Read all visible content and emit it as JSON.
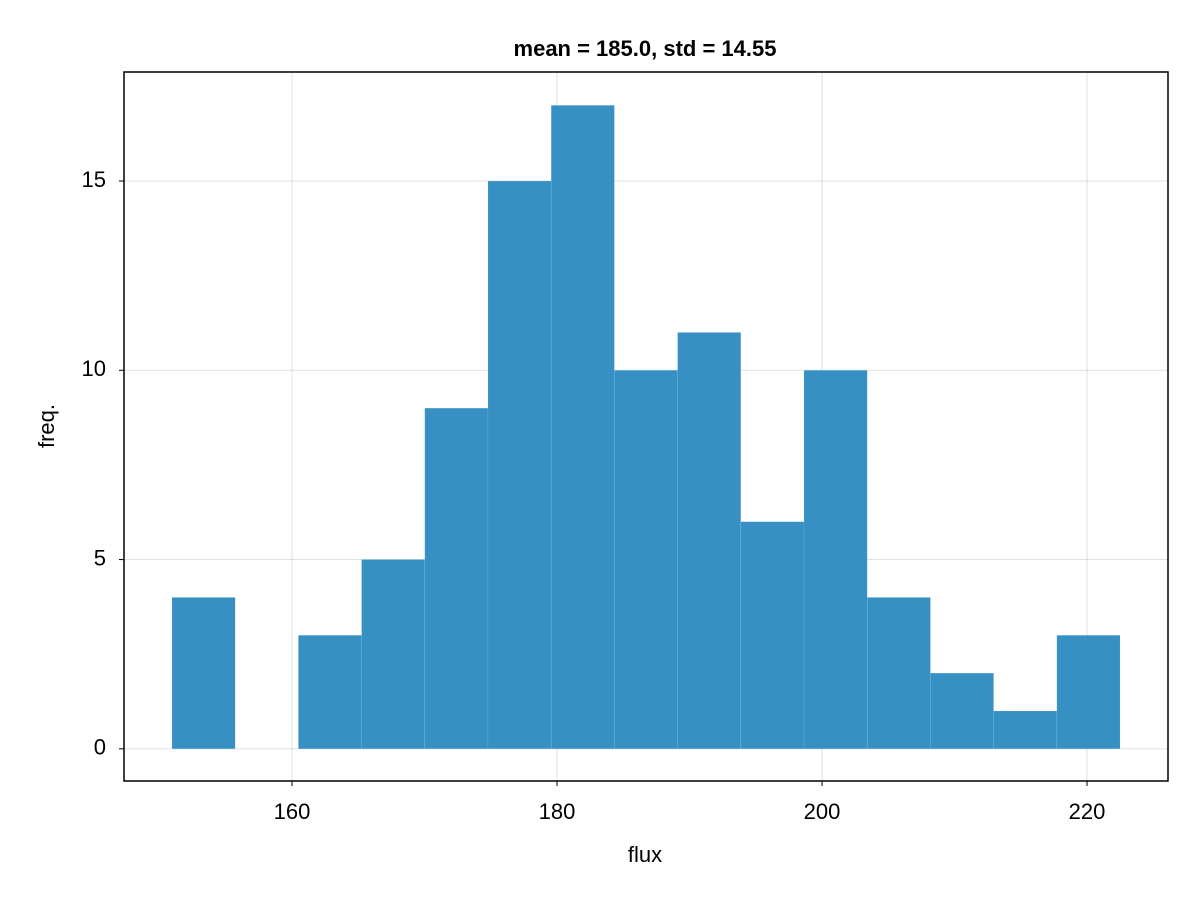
{
  "chart_data": {
    "type": "histogram",
    "title": "mean = 185.0, std = 14.55",
    "xlabel": "flux",
    "ylabel": "freq.",
    "bins": [
      150.94,
      155.71,
      160.48,
      165.25,
      170.02,
      174.79,
      179.56,
      184.33,
      189.1,
      193.87,
      198.64,
      203.41,
      208.18,
      212.95,
      217.72,
      222.49
    ],
    "values": [
      4,
      0,
      3,
      5,
      9,
      15,
      17,
      10,
      11,
      6,
      10,
      4,
      2,
      1,
      3
    ],
    "color": "#3790c3",
    "xlim": [
      147.32,
      226.11
    ],
    "ylim": [
      -0.85,
      17.88
    ],
    "xticks": [
      160,
      180,
      200,
      220
    ],
    "yticks": [
      0,
      5,
      10,
      15
    ],
    "grid": true
  }
}
